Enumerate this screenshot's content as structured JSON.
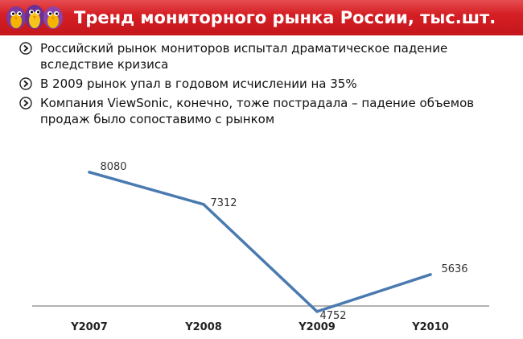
{
  "header": {
    "title": "Тренд мониторного рынка России, тыс.шт.",
    "logo_icon": "viewsonic-birds-logo",
    "bg_color": "#d21e24"
  },
  "bullets": [
    {
      "icon": "chevron-right-icon",
      "text": "Российский рынок мониторов испытал драматическое падение вследствие кризиса"
    },
    {
      "icon": "chevron-right-icon",
      "text": "В 2009 рынок упал в годовом исчислении на 35%"
    },
    {
      "icon": "chevron-right-icon",
      "text": "Компания ViewSonic, конечно, тоже пострадала – падение объемов продаж было сопоставимо с рынком"
    }
  ],
  "chart_data": {
    "type": "line",
    "categories": [
      "Y2007",
      "Y2008",
      "Y2009",
      "Y2010"
    ],
    "series": [
      {
        "values": [
          8080,
          7312,
          4752,
          5636
        ],
        "color": "#4a7ab0"
      }
    ],
    "data_labels": [
      "8080",
      "7312",
      "4752",
      "5636"
    ],
    "grid": false,
    "legend": false
  }
}
